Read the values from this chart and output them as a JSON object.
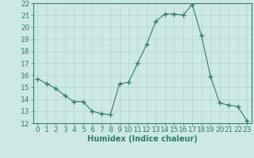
{
  "x": [
    0,
    1,
    2,
    3,
    4,
    5,
    6,
    7,
    8,
    9,
    10,
    11,
    12,
    13,
    14,
    15,
    16,
    17,
    18,
    19,
    20,
    21,
    22,
    23
  ],
  "y": [
    15.7,
    15.3,
    14.9,
    14.3,
    13.8,
    13.8,
    13.0,
    12.8,
    12.7,
    15.3,
    15.4,
    17.0,
    18.6,
    20.5,
    21.1,
    21.1,
    21.0,
    21.9,
    19.3,
    15.9,
    13.7,
    13.5,
    13.4,
    12.2
  ],
  "line_color": "#2e7d6e",
  "marker": "+",
  "marker_size": 4,
  "bg_color": "#cde8e5",
  "grid_color": "#b0d4d0",
  "xlabel": "Humidex (Indice chaleur)",
  "ylim": [
    12,
    22
  ],
  "xlim": [
    -0.5,
    23.5
  ],
  "yticks": [
    12,
    13,
    14,
    15,
    16,
    17,
    18,
    19,
    20,
    21,
    22
  ],
  "xticks": [
    0,
    1,
    2,
    3,
    4,
    5,
    6,
    7,
    8,
    9,
    10,
    11,
    12,
    13,
    14,
    15,
    16,
    17,
    18,
    19,
    20,
    21,
    22,
    23
  ],
  "tick_color": "#2e7d6e",
  "label_color": "#2e7d6e",
  "font_size": 6.5
}
